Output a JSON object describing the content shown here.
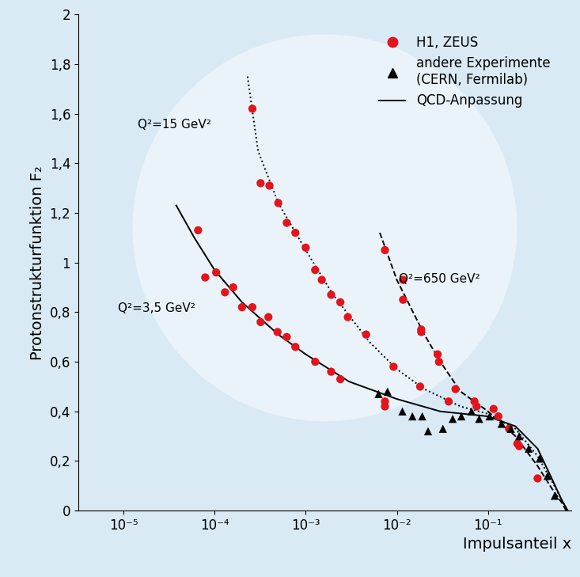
{
  "chart_data": {
    "type": "scatter",
    "xlabel": "Impulsanteil x",
    "ylabel": "Protonstrukturfunktion F₂",
    "log": "x",
    "grid": false,
    "legend": "upper right",
    "xlim": [
      3.2e-06,
      0.82
    ],
    "ylim": [
      0,
      2
    ],
    "xticks": [
      {
        "value": 1e-05,
        "label": "10⁻⁵"
      },
      {
        "value": 0.0001,
        "label": "10⁻⁴"
      },
      {
        "value": 0.001,
        "label": "10⁻³"
      },
      {
        "value": 0.01,
        "label": "10⁻²"
      },
      {
        "value": 0.1,
        "label": "10⁻¹"
      }
    ],
    "yticks": [
      0,
      {
        "value": 0.2,
        "label": "0,2"
      },
      {
        "value": 0.4,
        "label": "0,4"
      },
      {
        "value": 0.6,
        "label": "0,6"
      },
      {
        "value": 0.8,
        "label": "0,8"
      },
      1,
      {
        "value": 1.2,
        "label": "1,2"
      },
      {
        "value": 1.4,
        "label": "1,4"
      },
      {
        "value": 1.6,
        "label": "1,6"
      },
      {
        "value": 1.8,
        "label": "1,8"
      },
      2
    ],
    "series": [
      {
        "name": "H1, ZEUS",
        "type": "scatter",
        "color": "#e3141c",
        "marker": "circle",
        "x": [
          6.6e-05,
          7.9e-05,
          0.000104,
          0.00013,
          0.00016,
          0.0002,
          0.00026,
          0.00032,
          0.00039,
          0.00049,
          0.00062,
          0.00077,
          0.00127,
          0.0019,
          0.0024,
          0.0074,
          0.0074,
          0.00026,
          0.00032,
          0.0004,
          0.0005,
          0.00062,
          0.00077,
          0.001,
          0.00127,
          0.0015,
          0.0019,
          0.0024,
          0.0029,
          0.0046,
          0.0092,
          0.018,
          0.037,
          0.075,
          0.13,
          0.17,
          0.22,
          0.0074,
          0.0117,
          0.0117,
          0.0185,
          0.0185,
          0.028,
          0.029,
          0.044,
          0.071,
          0.115,
          0.21,
          0.35
        ],
        "values": [
          1.13,
          0.94,
          0.96,
          0.88,
          0.9,
          0.82,
          0.82,
          0.76,
          0.78,
          0.72,
          0.7,
          0.66,
          0.6,
          0.56,
          0.53,
          0.44,
          0.42,
          1.62,
          1.32,
          1.31,
          1.24,
          1.16,
          1.12,
          1.06,
          0.97,
          0.93,
          0.87,
          0.84,
          0.78,
          0.71,
          0.58,
          0.5,
          0.44,
          0.42,
          0.38,
          0.33,
          0.26,
          1.05,
          0.93,
          0.85,
          0.73,
          0.72,
          0.63,
          0.6,
          0.49,
          0.44,
          0.41,
          0.27,
          0.13
        ]
      },
      {
        "name": "andere Experimente\n(CERN, Fermilab)",
        "type": "scatter",
        "color": "#000000",
        "marker": "triangle",
        "x": [
          0.0063,
          0.0079,
          0.0115,
          0.0148,
          0.019,
          0.022,
          0.032,
          0.041,
          0.051,
          0.066,
          0.08,
          0.104,
          0.141,
          0.178,
          0.22,
          0.28,
          0.37,
          0.45,
          0.54
        ],
        "values": [
          0.47,
          0.48,
          0.4,
          0.38,
          0.38,
          0.32,
          0.33,
          0.37,
          0.38,
          0.4,
          0.37,
          0.38,
          0.35,
          0.33,
          0.3,
          0.25,
          0.21,
          0.14,
          0.06
        ]
      },
      {
        "name": "QCD-Anpassung",
        "label": "Q²=3,5 GeV²",
        "type": "line",
        "color": "#000000",
        "line_style": "solid",
        "x": [
          3.8e-05,
          6e-05,
          0.0001,
          0.0002,
          0.0005,
          0.001,
          0.003,
          0.01,
          0.03,
          0.1,
          0.2,
          0.35,
          0.5,
          0.65,
          0.75
        ],
        "values": [
          1.23,
          1.1,
          0.97,
          0.84,
          0.71,
          0.63,
          0.52,
          0.45,
          0.4,
          0.38,
          0.34,
          0.25,
          0.13,
          0.04,
          0.0
        ]
      },
      {
        "label": "Q²=15 GeV²",
        "type": "line",
        "color": "#000000",
        "line_style": "dotted",
        "x": [
          0.00023,
          0.0003,
          0.0005,
          0.001,
          0.002,
          0.005,
          0.01,
          0.02,
          0.05,
          0.1,
          0.2,
          0.35,
          0.5,
          0.65,
          0.75
        ],
        "values": [
          1.75,
          1.45,
          1.24,
          1.05,
          0.87,
          0.68,
          0.57,
          0.49,
          0.42,
          0.39,
          0.33,
          0.22,
          0.12,
          0.04,
          0.0
        ]
      },
      {
        "label": "Q²=650 GeV²",
        "type": "line",
        "color": "#000000",
        "line_style": "dashed",
        "x": [
          0.0065,
          0.01,
          0.02,
          0.03,
          0.05,
          0.1,
          0.2,
          0.35,
          0.5,
          0.65,
          0.72
        ],
        "values": [
          1.12,
          0.93,
          0.71,
          0.6,
          0.48,
          0.4,
          0.3,
          0.18,
          0.09,
          0.03,
          0.0
        ]
      }
    ]
  }
}
